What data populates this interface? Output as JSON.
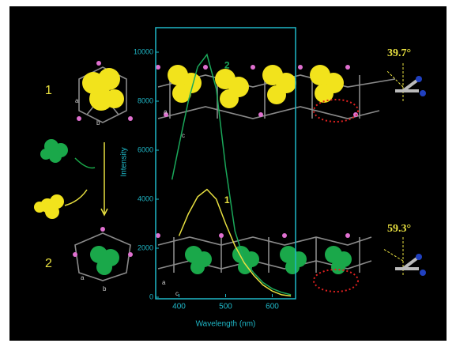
{
  "chart_data": {
    "type": "line",
    "x_label": "Wavelength (nm)",
    "y_label": "Intensity",
    "x": [
      385,
      400,
      420,
      440,
      460,
      480,
      500,
      520,
      540,
      560,
      580,
      600,
      620,
      640
    ],
    "series": [
      {
        "name": "1",
        "color": "#e8e040",
        "values": [
          null,
          2500,
          3400,
          4100,
          4400,
          4000,
          3000,
          2100,
          1400,
          900,
          500,
          250,
          100,
          50
        ]
      },
      {
        "name": "2",
        "color": "#1aa85a",
        "values": [
          4800,
          6200,
          8000,
          9400,
          9900,
          8500,
          5300,
          2700,
          1500,
          1000,
          600,
          350,
          200,
          100
        ]
      }
    ],
    "xlim": [
      350,
      650
    ],
    "xticks": [
      400,
      500,
      600
    ],
    "ylim": [
      0,
      11000
    ],
    "yticks": [
      0,
      2000,
      4000,
      6000,
      8000,
      10000
    ],
    "axis_color": "#1fb8c8"
  },
  "figure": {
    "compound_labels": [
      "1",
      "2"
    ],
    "angles": [
      "39.7°",
      "59.3°"
    ],
    "axis_letters": [
      "a",
      "b",
      "a",
      "c",
      "a",
      "b",
      "a",
      "c"
    ]
  }
}
